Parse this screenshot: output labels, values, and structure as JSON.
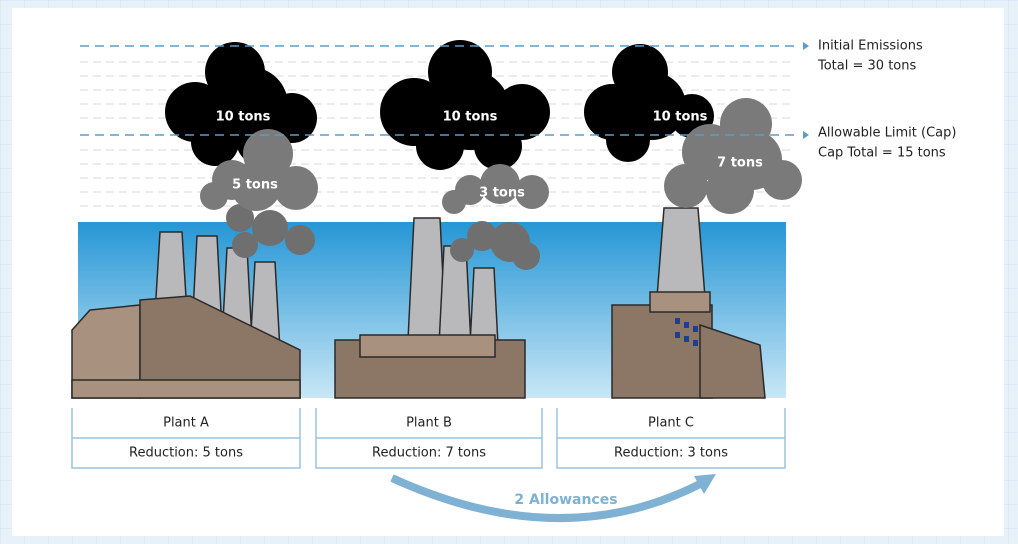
{
  "annotations": [
    {
      "lines": [
        "Initial Emissions",
        "Total = 30 tons"
      ]
    },
    {
      "lines": [
        "Allowable Limit (Cap)",
        "Cap Total = 15 tons"
      ]
    }
  ],
  "plants": [
    {
      "name": "Plant A",
      "reduction": "Reduction: 5 tons",
      "clouds": [
        "10 tons",
        "5 tons"
      ]
    },
    {
      "name": "Plant B",
      "reduction": "Reduction: 7 tons",
      "clouds": [
        "10 tons",
        "3 tons"
      ]
    },
    {
      "name": "Plant C",
      "reduction": "Reduction: 3 tons",
      "clouds": [
        "10 tons",
        "7 tons"
      ]
    }
  ],
  "transfer": "2 Allowances"
}
